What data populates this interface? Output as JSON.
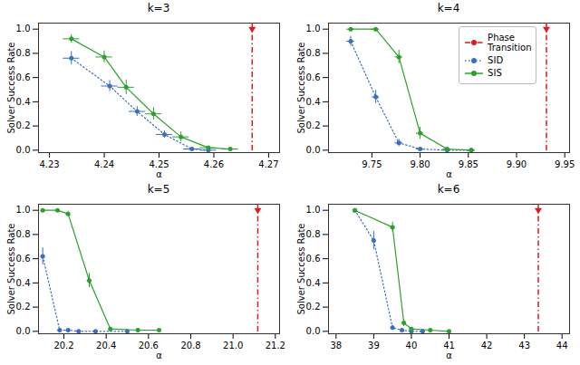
{
  "chart_data": [
    {
      "type": "line",
      "title": "k=3",
      "xlabel": "α",
      "ylabel": "Solver Success Rate",
      "xlim": [
        4.228,
        4.272
      ],
      "xticks": [
        4.23,
        4.24,
        4.25,
        4.26,
        4.27
      ],
      "ylim": [
        -0.02,
        1.05
      ],
      "yticks": [
        {
          "value": 0,
          "label": "0.0"
        },
        0.2,
        0.4,
        0.6,
        0.8,
        {
          "value": 1,
          "label": "1.0"
        }
      ],
      "series": [
        {
          "name": "Phase\nTransition",
          "type": "vline",
          "color": "#E0191A",
          "line_style": "dashdot",
          "marker": "triangle_down",
          "x": [
            4.267
          ],
          "values": [
            1.0
          ]
        },
        {
          "name": "SID",
          "color": "#3A6FBF",
          "line_style": "dotted",
          "marker": "o",
          "x": [
            4.234,
            4.241,
            4.246,
            4.251,
            4.256,
            4.259
          ],
          "values": [
            0.76,
            0.53,
            0.32,
            0.13,
            0.01,
            0.0
          ],
          "yerr": [
            0.055,
            0.045,
            0.04,
            0.03,
            0.01,
            0.005
          ],
          "xerr": [
            0.0015,
            0.0015,
            0.0015,
            0.0015,
            0.0015,
            0.0015
          ]
        },
        {
          "name": "SIS",
          "color": "#2CA02C",
          "line_style": "solid",
          "marker": "o",
          "x": [
            4.234,
            4.24,
            4.244,
            4.249,
            4.254,
            4.259,
            4.263
          ],
          "values": [
            0.92,
            0.77,
            0.52,
            0.3,
            0.11,
            0.02,
            0.01
          ],
          "yerr": [
            0.035,
            0.05,
            0.06,
            0.05,
            0.04,
            0.015,
            0.01
          ],
          "xerr": [
            0.0015,
            0.0015,
            0.0015,
            0.0015,
            0.0015,
            0.0015,
            0.0015
          ]
        }
      ]
    },
    {
      "type": "line",
      "title": "k=4",
      "xlabel": "α",
      "ylabel": "Solver Success Rate",
      "xlim": [
        9.705,
        9.955
      ],
      "xticks": [
        9.75,
        {
          "value": 9.8,
          "label": "9.80"
        },
        9.85,
        {
          "value": 9.9,
          "label": "9.90"
        },
        9.95
      ],
      "ylim": [
        -0.02,
        1.05
      ],
      "yticks": [
        {
          "value": 0,
          "label": "0.0"
        },
        0.2,
        0.4,
        0.6,
        0.8,
        {
          "value": 1,
          "label": "1.0"
        }
      ],
      "legend": "upper right",
      "series": [
        {
          "name": "Phase\nTransition",
          "type": "vline",
          "color": "#E0191A",
          "line_style": "dashdot",
          "marker": "triangle_down",
          "x": [
            9.931
          ],
          "values": [
            1.0
          ]
        },
        {
          "name": "SID",
          "color": "#3A6FBF",
          "line_style": "dotted",
          "marker": "o",
          "x": [
            9.728,
            9.754,
            9.778,
            9.8,
            9.828,
            9.853
          ],
          "values": [
            0.9,
            0.44,
            0.06,
            0.01,
            0.0,
            0.0
          ],
          "yerr": [
            0.04,
            0.055,
            0.03,
            0.01,
            0.005,
            0.005
          ],
          "xerr": [
            0.004,
            0.004,
            0.004,
            0.004,
            0.004,
            0.004
          ]
        },
        {
          "name": "SIS",
          "color": "#2CA02C",
          "line_style": "solid",
          "marker": "o",
          "x": [
            9.728,
            9.754,
            9.778,
            9.8,
            9.828,
            9.853
          ],
          "values": [
            1.0,
            1.0,
            0.77,
            0.14,
            0.01,
            0.0
          ],
          "yerr": [
            0.003,
            0.003,
            0.055,
            0.05,
            0.01,
            0.005
          ],
          "xerr": [
            0.004,
            0.004,
            0.004,
            0.004,
            0.004,
            0.004
          ]
        }
      ]
    },
    {
      "type": "line",
      "title": "k=5",
      "xlabel": "α",
      "ylabel": "Solver Success Rate",
      "xlim": [
        20.08,
        21.22
      ],
      "xticks": [
        20.2,
        20.4,
        20.6,
        20.8,
        {
          "value": 21,
          "label": "21.0"
        },
        21.2
      ],
      "ylim": [
        -0.02,
        1.05
      ],
      "yticks": [
        {
          "value": 0,
          "label": "0.0"
        },
        0.2,
        0.4,
        0.6,
        0.8,
        {
          "value": 1,
          "label": "1.0"
        }
      ],
      "series": [
        {
          "name": "Phase\nTransition",
          "type": "vline",
          "color": "#E0191A",
          "line_style": "dashdot",
          "marker": "triangle_down",
          "x": [
            21.117
          ],
          "values": [
            1.0
          ]
        },
        {
          "name": "SID",
          "color": "#3A6FBF",
          "line_style": "dotted",
          "marker": "o",
          "x": [
            20.1,
            20.18,
            20.22,
            20.27,
            20.35,
            20.5
          ],
          "values": [
            0.62,
            0.01,
            0.01,
            0.0,
            0.0,
            0.0
          ],
          "yerr": [
            0.07,
            0.01,
            0.008,
            0.003,
            0.003,
            0.003
          ],
          "xerr": [
            0.01,
            0.01,
            0.01,
            0.01,
            0.01,
            0.01
          ]
        },
        {
          "name": "SIS",
          "color": "#2CA02C",
          "line_style": "solid",
          "marker": "o",
          "x": [
            20.1,
            20.17,
            20.22,
            20.32,
            20.42,
            20.55,
            20.65
          ],
          "values": [
            1.0,
            1.0,
            0.97,
            0.42,
            0.02,
            0.01,
            0.01
          ],
          "yerr": [
            0.003,
            0.003,
            0.02,
            0.06,
            0.01,
            0.008,
            0.008
          ],
          "xerr": [
            0.01,
            0.01,
            0.01,
            0.01,
            0.01,
            0.01,
            0.01
          ]
        }
      ]
    },
    {
      "type": "line",
      "title": "k=6",
      "xlabel": "α",
      "ylabel": "Solver Success Rate",
      "xlim": [
        37.8,
        44.2
      ],
      "xticks": [
        38,
        39,
        40,
        41,
        42,
        43,
        44
      ],
      "ylim": [
        -0.02,
        1.05
      ],
      "yticks": [
        {
          "value": 0,
          "label": "0.0"
        },
        0.2,
        0.4,
        0.6,
        0.8,
        {
          "value": 1,
          "label": "1.0"
        }
      ],
      "series": [
        {
          "name": "Phase\nTransition",
          "type": "vline",
          "color": "#E0191A",
          "line_style": "dashdot",
          "marker": "triangle_down",
          "x": [
            43.37
          ],
          "values": [
            1.0
          ]
        },
        {
          "name": "SID",
          "color": "#3A6FBF",
          "line_style": "dotted",
          "marker": "o",
          "x": [
            38.5,
            39.0,
            39.5,
            39.75,
            40.0,
            40.3
          ],
          "values": [
            1.0,
            0.75,
            0.03,
            0.01,
            0.0,
            0.0
          ],
          "yerr": [
            0.005,
            0.075,
            0.02,
            0.01,
            0.005,
            0.005
          ],
          "xerr": [
            0.05,
            0.05,
            0.05,
            0.05,
            0.05,
            0.05
          ]
        },
        {
          "name": "SIS",
          "color": "#2CA02C",
          "line_style": "solid",
          "marker": "o",
          "x": [
            38.5,
            39.5,
            39.8,
            40.0,
            40.5,
            41.0
          ],
          "values": [
            1.0,
            0.86,
            0.07,
            0.02,
            0.01,
            0.0
          ],
          "yerr": [
            0.003,
            0.04,
            0.03,
            0.01,
            0.008,
            0.005
          ],
          "xerr": [
            0.05,
            0.05,
            0.05,
            0.05,
            0.05,
            0.05
          ]
        }
      ]
    }
  ]
}
